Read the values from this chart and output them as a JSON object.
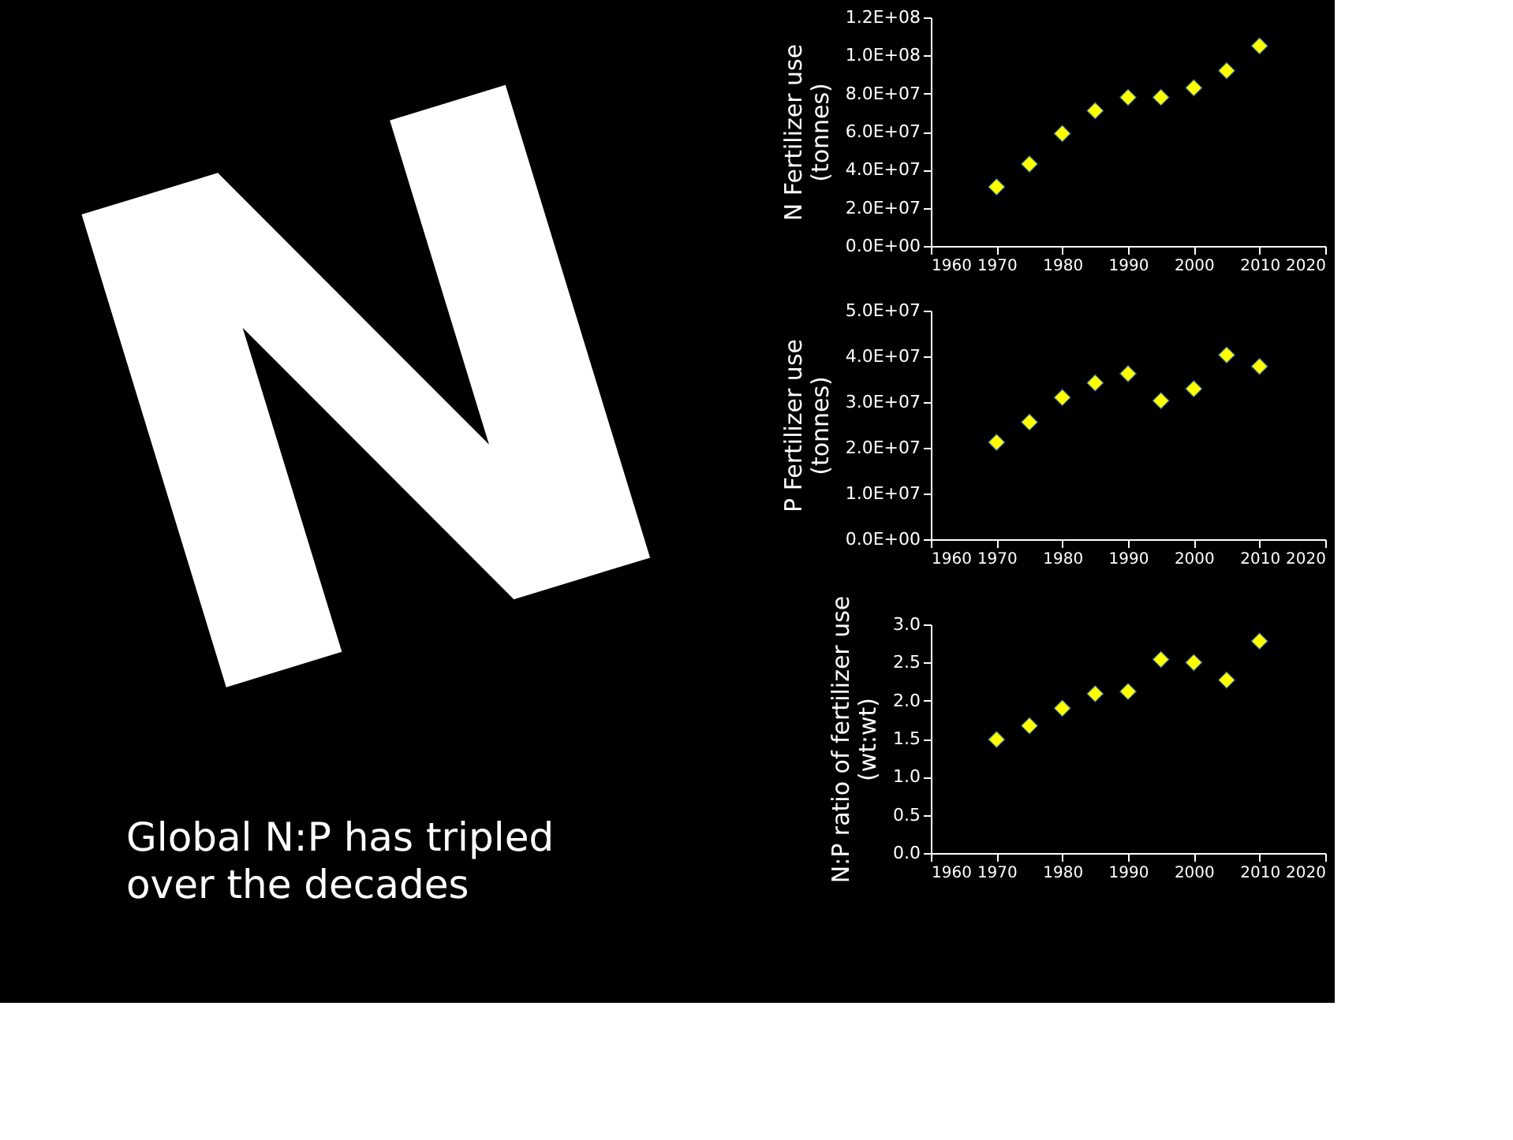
{
  "chart_data": [
    {
      "type": "other",
      "annotations": [
        "N",
        "Global N:P has tripled\nover the decades"
      ]
    },
    {
      "type": "scatter",
      "marker": "diamond",
      "grid": false,
      "legend": false,
      "ylabel": "N Fertilizer use\n(tonnes)",
      "x": [
        1970,
        1975,
        1980,
        1985,
        1990,
        1995,
        2000,
        2005,
        2010
      ],
      "series": [
        {
          "color": "#ffff00",
          "values": [
            31000000,
            43000000,
            59000000,
            71000000,
            78000000,
            78000000,
            83000000,
            92000000,
            105000000
          ]
        }
      ],
      "xlim": [
        1960,
        2020
      ],
      "xticks": [
        1960,
        1970,
        1980,
        1990,
        2000,
        2010,
        2020
      ],
      "ylim": [
        0,
        120000000
      ],
      "yticks": [
        {
          "value": 0,
          "label": "0.0E+00"
        },
        {
          "value": 20000000,
          "label": "2.0E+07"
        },
        {
          "value": 40000000,
          "label": "4.0E+07"
        },
        {
          "value": 60000000,
          "label": "6.0E+07"
        },
        {
          "value": 80000000,
          "label": "8.0E+07"
        },
        {
          "value": 100000000,
          "label": "1.0E+08"
        },
        {
          "value": 120000000,
          "label": "1.2E+08"
        }
      ]
    },
    {
      "type": "scatter",
      "marker": "diamond",
      "grid": false,
      "legend": false,
      "ylabel": "P Fertilizer use\n(tonnes)",
      "x": [
        1970,
        1975,
        1980,
        1985,
        1990,
        1995,
        2000,
        2005,
        2010
      ],
      "series": [
        {
          "color": "#ffff00",
          "values": [
            21200000,
            25600000,
            31000000,
            34200000,
            36200000,
            30300000,
            32900000,
            40300000,
            37800000
          ]
        }
      ],
      "xlim": [
        1960,
        2020
      ],
      "xticks": [
        1960,
        1970,
        1980,
        1990,
        2000,
        2010,
        2020
      ],
      "ylim": [
        0,
        50000000
      ],
      "yticks": [
        {
          "value": 0,
          "label": "0.0E+00"
        },
        {
          "value": 10000000,
          "label": "1.0E+07"
        },
        {
          "value": 20000000,
          "label": "2.0E+07"
        },
        {
          "value": 30000000,
          "label": "3.0E+07"
        },
        {
          "value": 40000000,
          "label": "4.0E+07"
        },
        {
          "value": 50000000,
          "label": "5.0E+07"
        }
      ]
    },
    {
      "type": "scatter",
      "marker": "diamond",
      "grid": false,
      "legend": false,
      "ylabel": "N:P ratio of fertilizer use\n(wt:wt)",
      "x": [
        1970,
        1975,
        1980,
        1985,
        1990,
        1995,
        2000,
        2005,
        2010
      ],
      "series": [
        {
          "color": "#ffff00",
          "values": [
            1.49,
            1.67,
            1.9,
            2.09,
            2.12,
            2.54,
            2.5,
            2.27,
            2.78
          ]
        }
      ],
      "xlim": [
        1960,
        2020
      ],
      "xticks": [
        1960,
        1970,
        1980,
        1990,
        2000,
        2010,
        2020
      ],
      "ylim": [
        0,
        3
      ],
      "yticks": [
        {
          "value": 0,
          "label": "0.0"
        },
        {
          "value": 0.5,
          "label": "0.5"
        },
        {
          "value": 1,
          "label": "1.0"
        },
        {
          "value": 1.5,
          "label": "1.5"
        },
        {
          "value": 2,
          "label": "2.0"
        },
        {
          "value": 2.5,
          "label": "2.5"
        },
        {
          "value": 3,
          "label": "3.0"
        }
      ]
    }
  ]
}
